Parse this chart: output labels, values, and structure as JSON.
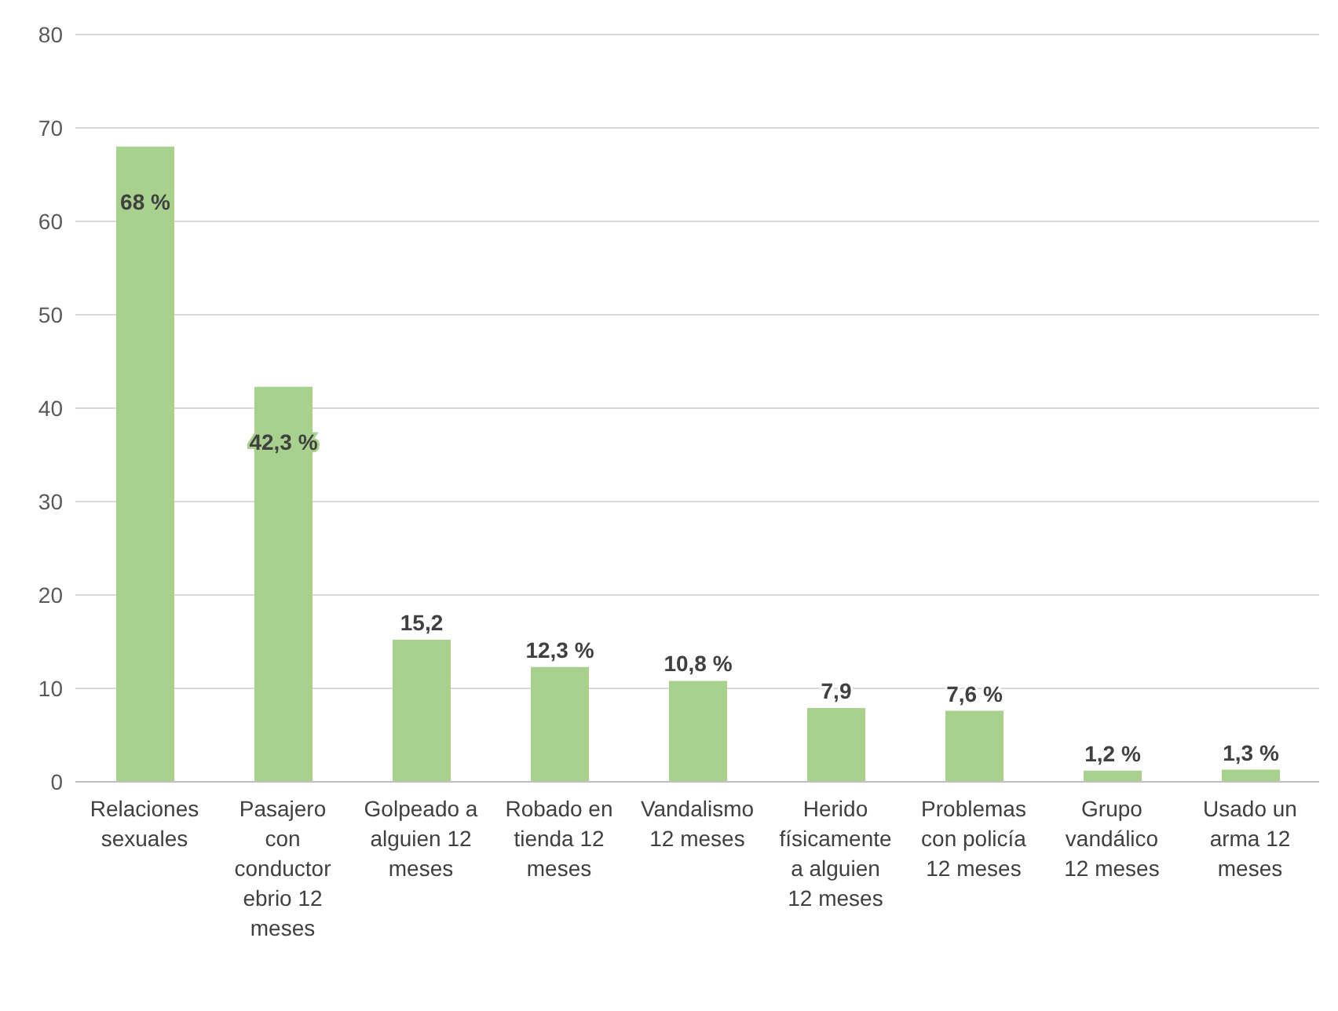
{
  "chart_data": {
    "type": "bar",
    "categories": [
      "Relaciones sexuales",
      "Pasajero con conductor ebrio 12 meses",
      "Golpeado a alguien 12 meses",
      "Robado en tienda 12 meses",
      "Vandalismo 12 meses",
      "Herido físicamente a alguien 12 meses",
      "Problemas con policía 12 meses",
      "Grupo vandálico 12 meses",
      "Usado un arma 12 meses"
    ],
    "values": [
      68,
      42.3,
      15.2,
      12.3,
      10.8,
      7.9,
      7.6,
      1.2,
      1.3
    ],
    "value_labels": [
      "68 %",
      "42,3 %",
      "15,2",
      "12,3 %",
      "10,8 %",
      "7,9",
      "7,6 %",
      "1,2 %",
      "1,3 %"
    ],
    "color": "#a9d18e",
    "ylim": [
      0,
      80
    ],
    "yticks": [
      0,
      10,
      20,
      30,
      40,
      50,
      60,
      70,
      80
    ],
    "grid": "y"
  }
}
